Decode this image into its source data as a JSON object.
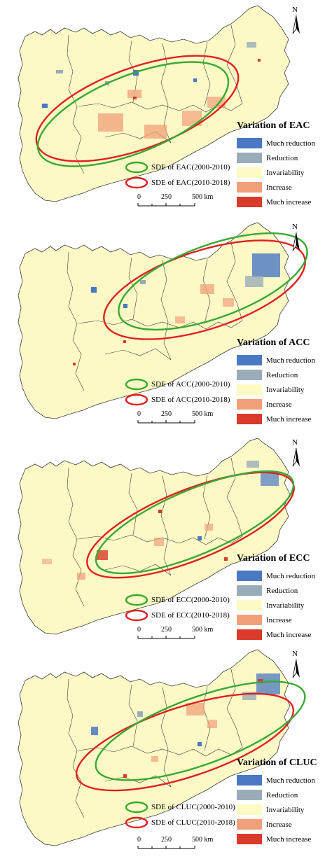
{
  "colors": {
    "land": "#fcf9c6",
    "border": "#3c3c3c",
    "much_reduction": "#4a78c2",
    "reduction": "#9aacb8",
    "invariability": "#fdfbc4",
    "increase": "#f2a07a",
    "much_increase": "#d93a2b",
    "sde_first": "#3aa832",
    "sde_second": "#e02020"
  },
  "north_label": "N",
  "scale": {
    "zero": "0",
    "mid": "250",
    "end": "500 km"
  },
  "legend_items": [
    {
      "label": "Much reduction",
      "color": "#4a78c2"
    },
    {
      "label": "Reduction",
      "color": "#9aacb8"
    },
    {
      "label": "Invariability",
      "color": "#fdfbc4"
    },
    {
      "label": "Increase",
      "color": "#f2a07a"
    },
    {
      "label": "Much increase",
      "color": "#d93a2b"
    }
  ],
  "panels": [
    {
      "legend_title": "Variation of EAC",
      "sde_first": "SDE of EAC(2000-2010)",
      "sde_second": "SDE of EAC(2010-2018)"
    },
    {
      "legend_title": "Variation of ACC",
      "sde_first": "SDE of ACC(2000-2010)",
      "sde_second": "SDE of ACC(2010-2018)"
    },
    {
      "legend_title": "Variation of ECC",
      "sde_first": "SDE of ECC(2000-2010)",
      "sde_second": "SDE of ECC(2010-2018)"
    },
    {
      "legend_title": "Variation of CLUC",
      "sde_first": "SDE of CLUC(2000-2010)",
      "sde_second": "SDE of CLUC(2010-2018)"
    }
  ]
}
